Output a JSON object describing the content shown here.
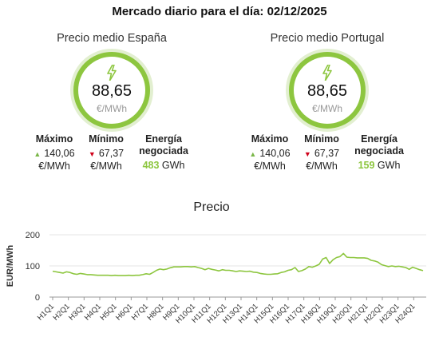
{
  "header": {
    "title": "Mercado diario para el día: 02/12/2025"
  },
  "spain": {
    "title": "Precio medio España",
    "avg_value": "88,65",
    "avg_unit": "€/MWh",
    "max_label": "Máximo",
    "max_value": "140,06",
    "max_unit": "€/MWh",
    "min_label": "Mínimo",
    "min_value": "67,37",
    "min_unit": "€/MWh",
    "energy_label_1": "Energía",
    "energy_label_2": "negociada",
    "energy_value": "483",
    "energy_unit": "GWh"
  },
  "portugal": {
    "title": "Precio medio Portugal",
    "avg_value": "88,65",
    "avg_unit": "€/MWh",
    "max_label": "Máximo",
    "max_value": "140,06",
    "max_unit": "€/MWh",
    "min_label": "Mínimo",
    "min_value": "67,37",
    "min_unit": "€/MWh",
    "energy_label_1": "Energía",
    "energy_label_2": "negociada",
    "energy_value": "159",
    "energy_unit": "GWh"
  },
  "colors": {
    "accent_green": "#8dc63f",
    "up_arrow": "#7ab648",
    "down_arrow": "#d0021b",
    "line": "#8dc63f"
  },
  "chart_data": {
    "type": "line",
    "title": "Precio",
    "ylabel": "EUR/MWh",
    "ylim": [
      0,
      200
    ],
    "yticks": [
      0,
      100,
      200
    ],
    "grid": true,
    "tick_labels": [
      "H1Q1",
      "H2Q1",
      "H3Q1",
      "H4Q1",
      "H5Q1",
      "H6Q1",
      "H7Q1",
      "H8Q1",
      "H9Q1",
      "H10Q1",
      "H11Q1",
      "H12Q1",
      "H13Q1",
      "H14Q1",
      "H15Q1",
      "H16Q1",
      "H17Q1",
      "H18Q1",
      "H19Q1",
      "H20Q1",
      "H21Q1",
      "H22Q1",
      "H23Q1",
      "H24Q1"
    ],
    "series": [
      {
        "values": [
          83,
          81,
          79,
          77,
          81,
          79,
          75,
          73,
          76,
          74,
          72,
          72,
          71,
          70,
          70,
          70,
          70,
          69,
          70,
          69,
          69,
          69,
          70,
          69,
          70,
          70,
          72,
          75,
          73,
          79,
          86,
          90,
          88,
          90,
          94,
          97,
          97,
          97,
          98,
          98,
          97,
          98,
          95,
          92,
          88,
          92,
          89,
          87,
          84,
          88,
          86,
          86,
          84,
          82,
          84,
          83,
          82,
          83,
          80,
          79,
          76,
          74,
          73,
          73,
          74,
          75,
          79,
          81,
          86,
          88,
          95,
          82,
          85,
          90,
          98,
          96,
          100,
          105,
          122,
          127,
          108,
          120,
          127,
          130,
          140,
          128,
          127,
          127,
          126,
          126,
          126,
          124,
          118,
          116,
          112,
          104,
          101,
          98,
          100,
          98,
          99,
          97,
          95,
          89,
          96,
          92,
          88,
          85
        ]
      }
    ]
  }
}
